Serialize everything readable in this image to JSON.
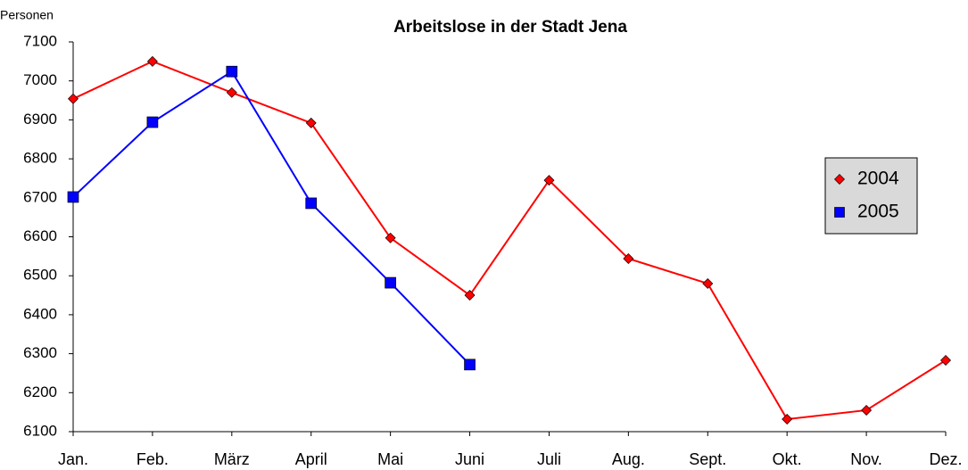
{
  "chart_data": {
    "type": "line",
    "title": "Arbeitslose in der Stadt Jena",
    "ylabel": "Personen",
    "categories": [
      "Jan.",
      "Feb.",
      "März",
      "April",
      "Mai",
      "Juni",
      "Juli",
      "Aug.",
      "Sept.",
      "Okt.",
      "Nov.",
      "Dez."
    ],
    "series": [
      {
        "name": "2004",
        "color": "#ff0000",
        "marker": "diamond",
        "values": [
          6954,
          7050,
          6970,
          6892,
          6597,
          6450,
          6745,
          6544,
          6480,
          6132,
          6155,
          6283
        ]
      },
      {
        "name": "2005",
        "color": "#0000ff",
        "marker": "square",
        "values": [
          6702,
          6894,
          7024,
          6686,
          6482,
          6272,
          null,
          null,
          null,
          null,
          null,
          null
        ]
      }
    ],
    "ylim": [
      6100,
      7100
    ],
    "yticks": [
      6100,
      6200,
      6300,
      6400,
      6500,
      6600,
      6700,
      6800,
      6900,
      7000,
      7100
    ],
    "grid": false,
    "legend": "right"
  }
}
